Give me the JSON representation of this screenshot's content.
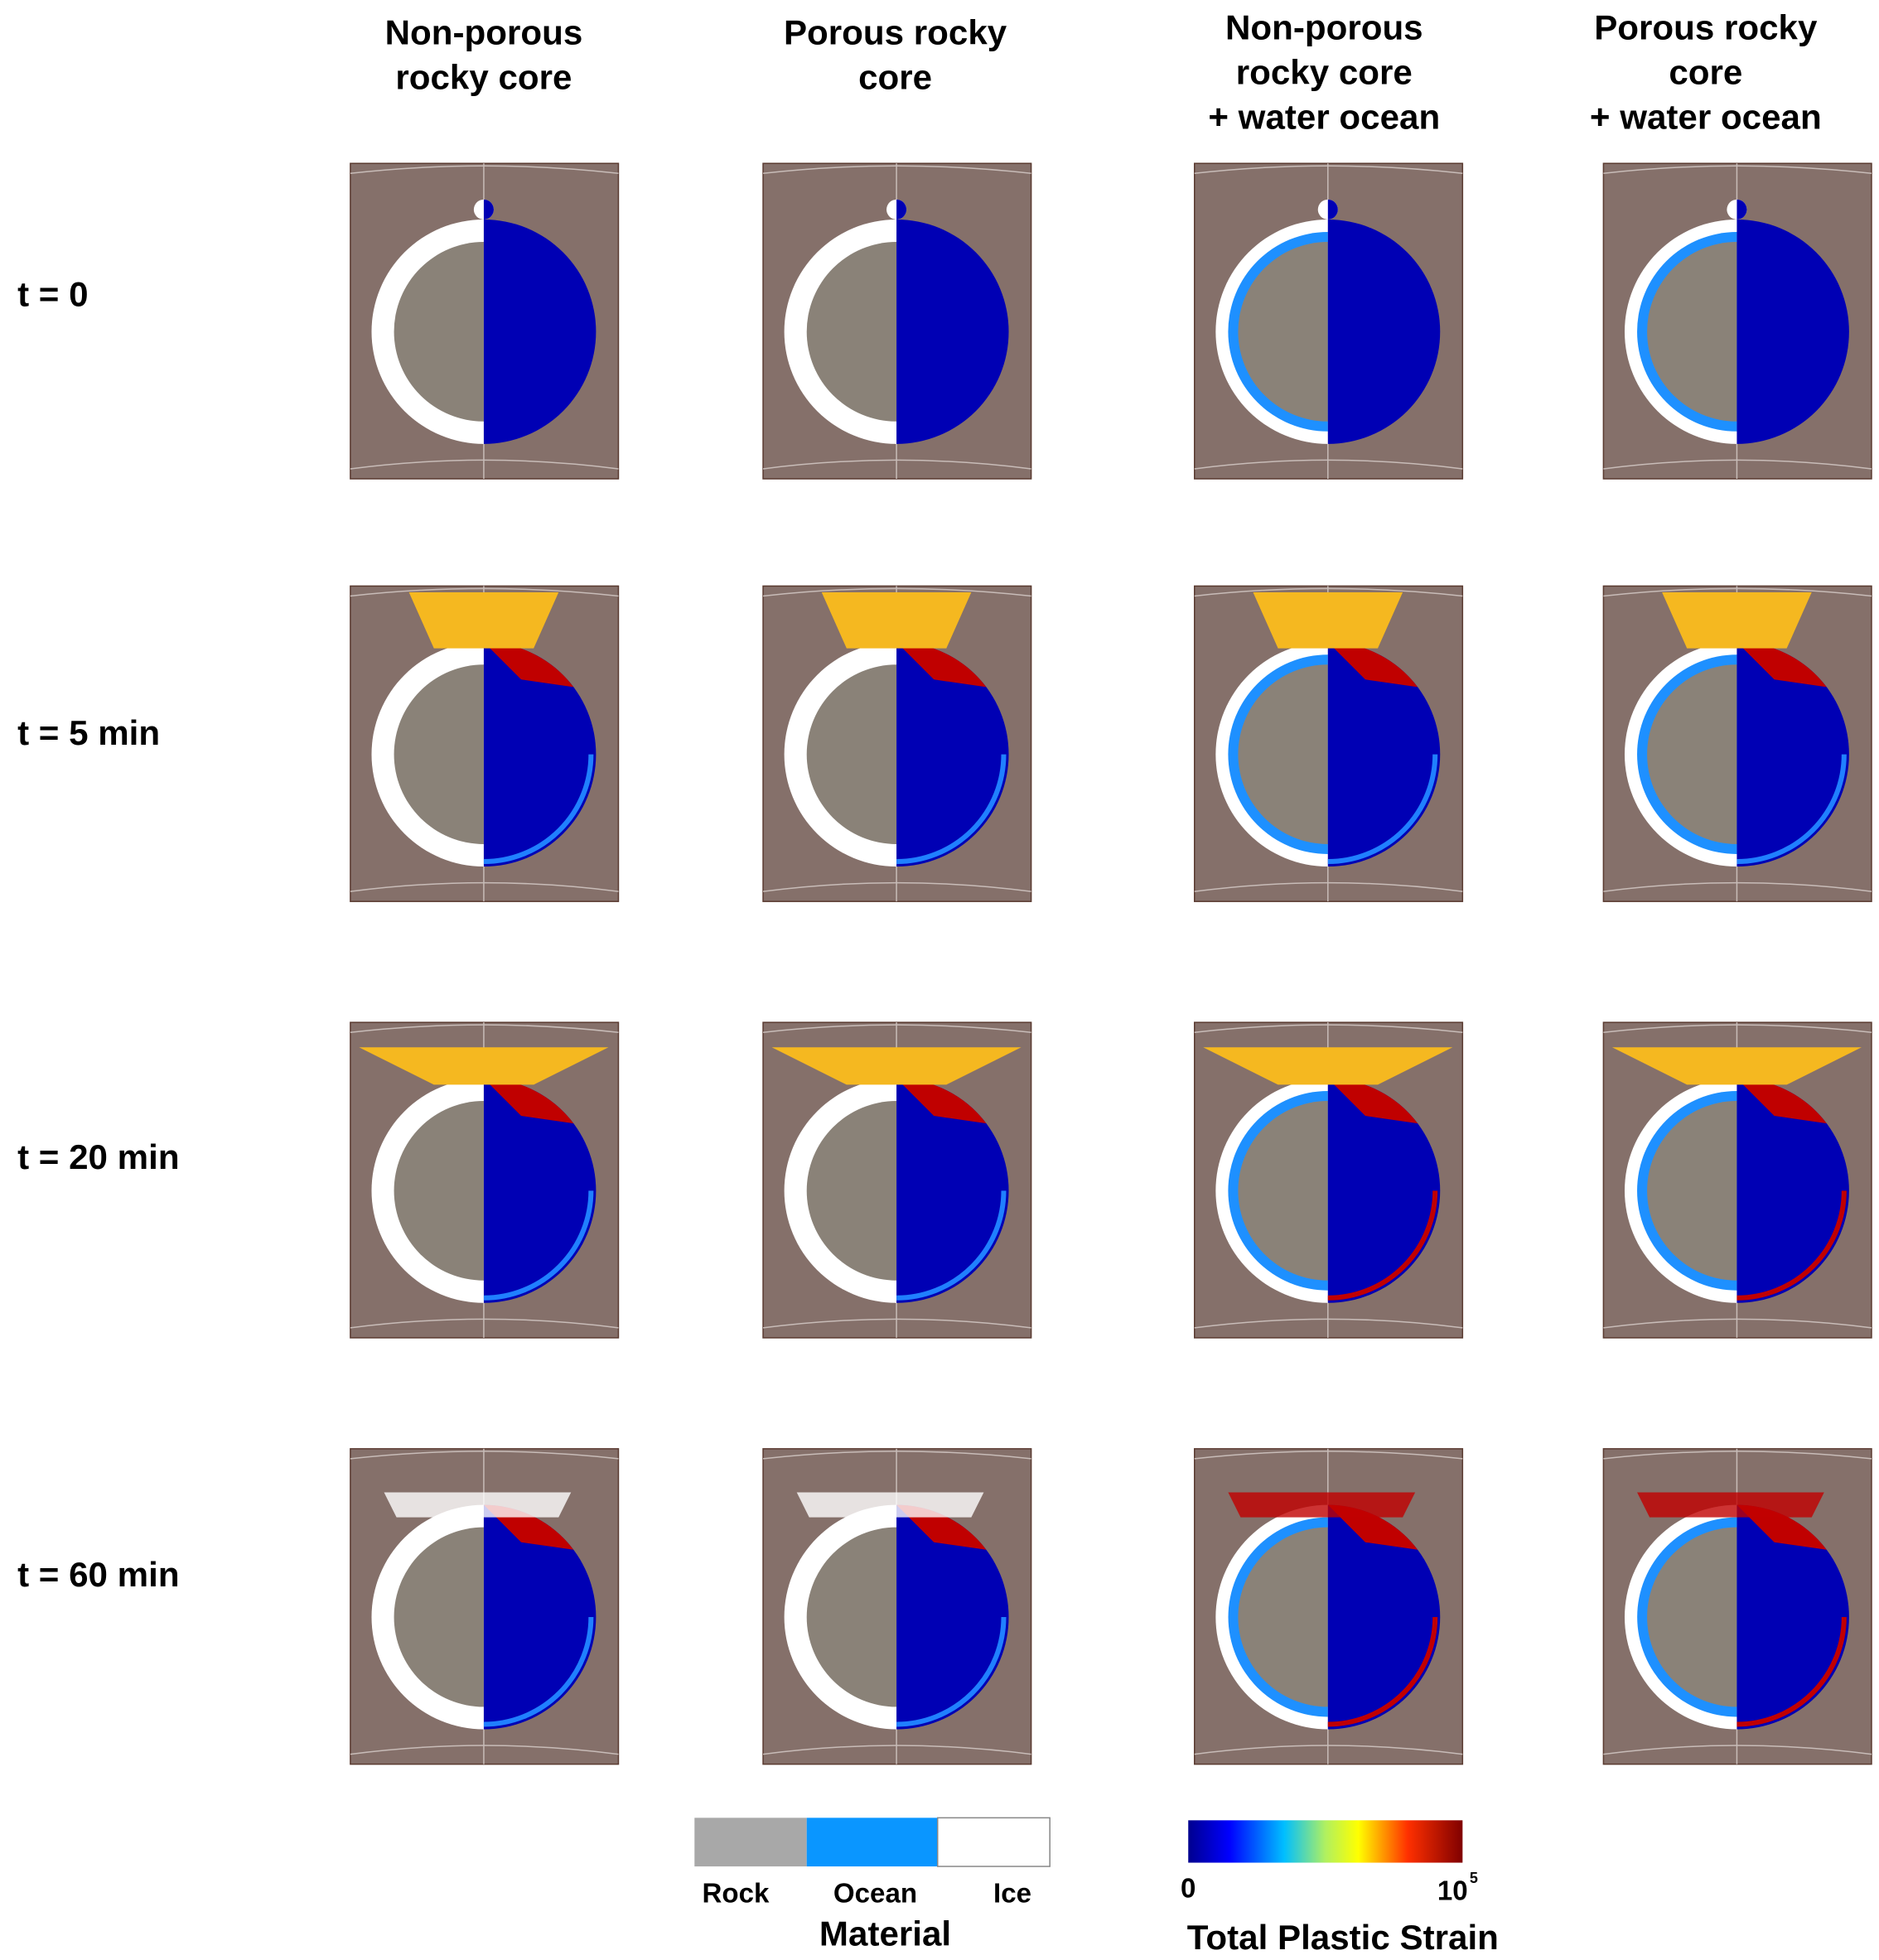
{
  "column_headers": [
    [
      "Non-porous",
      "rocky core"
    ],
    [
      "Porous rocky",
      "core"
    ],
    [
      "Non-porous",
      "rocky core",
      "+ water ocean"
    ],
    [
      "Porous rocky",
      "core",
      "+ water ocean"
    ]
  ],
  "row_labels": [
    "t = 0",
    "t = 5 min",
    "t = 20 min",
    "t = 60 min"
  ],
  "material_legend": {
    "title": "Material",
    "labels": [
      "Rock",
      "Ocean",
      "Ice"
    ]
  },
  "strain_legend": {
    "title": "Total Plastic Strain",
    "min_label": "0",
    "max_label": "10",
    "max_exponent": "5"
  }
}
